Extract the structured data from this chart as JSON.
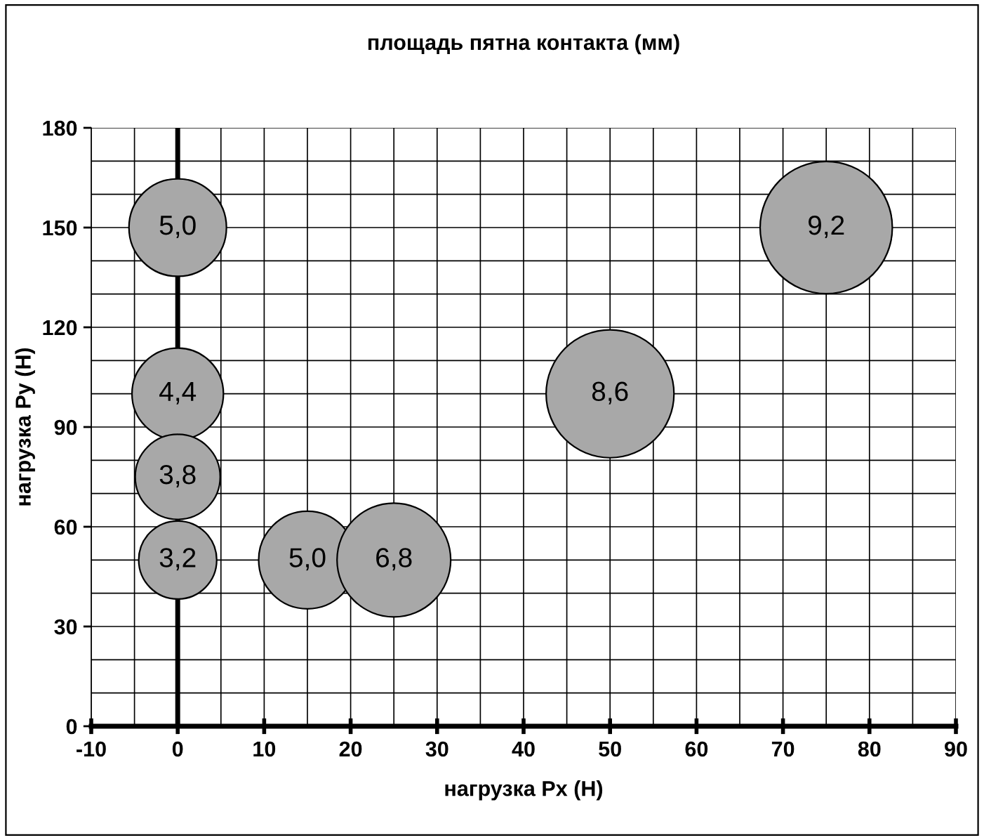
{
  "chart_data": {
    "type": "bubble",
    "title": "площадь пятна контакта (мм)",
    "xlabel": "нагрузка Px (H)",
    "ylabel": "нагрузка Py (H)",
    "x": [
      0,
      0,
      0,
      0,
      15,
      25,
      50,
      75
    ],
    "values": [
      150,
      100,
      75,
      50,
      50,
      50,
      100,
      150
    ],
    "sizes": [
      5.0,
      4.4,
      3.8,
      3.2,
      5.0,
      6.8,
      8.6,
      9.2
    ],
    "value_labels": [
      "5,0",
      "4,4",
      "3,8",
      "3,2",
      "5,0",
      "6,8",
      "8,6",
      "9,2"
    ],
    "color": "#a8a8a8",
    "xlim": [
      -10,
      90
    ],
    "xticks": [
      -10,
      0,
      10,
      20,
      30,
      40,
      50,
      60,
      70,
      80,
      90
    ],
    "ylim": [
      0,
      180
    ],
    "yticks": [
      0,
      30,
      60,
      90,
      120,
      150,
      180
    ],
    "grid": true
  }
}
